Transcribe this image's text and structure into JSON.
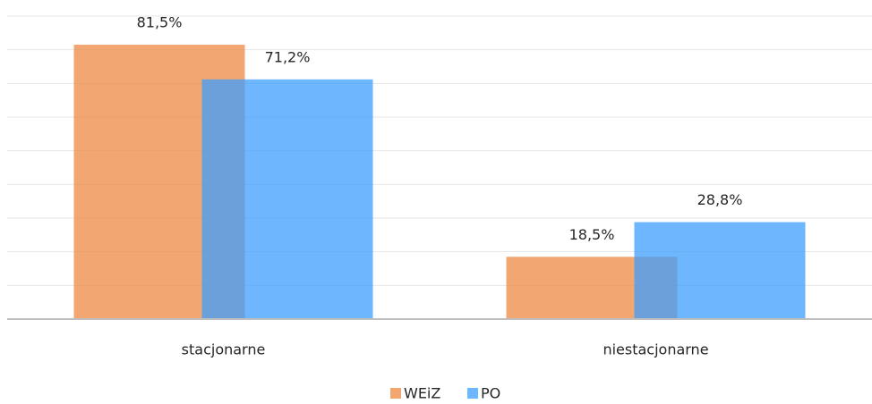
{
  "chart_data": {
    "type": "bar",
    "categories": [
      "stacjonarne",
      "niestacjonarne"
    ],
    "series": [
      {
        "name": "WEiZ",
        "color": "#ed8a44",
        "values": [
          81.5,
          18.5
        ],
        "value_labels": [
          "81,5%",
          "18,5%"
        ]
      },
      {
        "name": "PO",
        "color": "#3e9dfc",
        "values": [
          71.2,
          28.8
        ],
        "value_labels": [
          "71,2%",
          "28,8%"
        ]
      }
    ],
    "ylim": [
      0,
      90
    ],
    "yticks": [
      0,
      10,
      20,
      30,
      40,
      50,
      60,
      70,
      80,
      90
    ],
    "grid": true,
    "legend": "bottom"
  }
}
